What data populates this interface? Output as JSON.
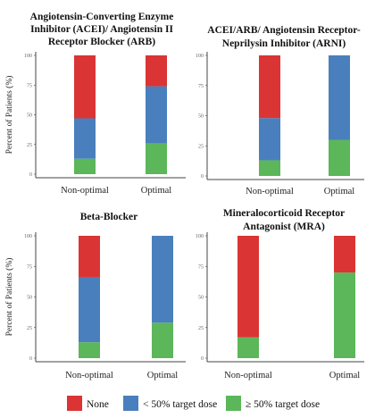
{
  "colors": {
    "none": "#db3434",
    "low": "#4a7fbd",
    "high": "#5cb65a",
    "axis": "#444444"
  },
  "legend": {
    "items": [
      {
        "key": "none",
        "label": "None"
      },
      {
        "key": "low",
        "label": "< 50% target dose"
      },
      {
        "key": "high",
        "label": "≥ 50% target dose"
      }
    ]
  },
  "chart_data": [
    {
      "type": "bar",
      "stacked": true,
      "title_lines": [
        "Angiotensin-Converting Enzyme",
        "Inhibitor (ACEI)/ Angiotensin II",
        "Receptor Blocker (ARB)"
      ],
      "ylabel": "Percent of Patients (%)",
      "xlabel": "",
      "ylim": [
        0,
        100
      ],
      "yticks": [
        0,
        25,
        50,
        75,
        100
      ],
      "categories": [
        "Non-optimal",
        "Optimal"
      ],
      "series": [
        {
          "key": "high",
          "name": "≥ 50% target dose",
          "values": [
            13,
            26
          ]
        },
        {
          "key": "low",
          "name": "< 50% target dose",
          "values": [
            34,
            48
          ]
        },
        {
          "key": "none",
          "name": "None",
          "values": [
            53,
            26
          ]
        }
      ]
    },
    {
      "type": "bar",
      "stacked": true,
      "title_lines": [
        "ACEI/ARB/ Angiotensin Receptor-",
        "Neprilysin Inhibitor (ARNI)"
      ],
      "ylabel": "",
      "xlabel": "",
      "ylim": [
        0,
        100
      ],
      "yticks": [
        0,
        25,
        50,
        75,
        100
      ],
      "categories": [
        "Non-optimal",
        "Optimal"
      ],
      "series": [
        {
          "key": "high",
          "name": "≥ 50% target dose",
          "values": [
            13,
            30
          ]
        },
        {
          "key": "low",
          "name": "< 50% target dose",
          "values": [
            35,
            70
          ]
        },
        {
          "key": "none",
          "name": "None",
          "values": [
            52,
            0
          ]
        }
      ]
    },
    {
      "type": "bar",
      "stacked": true,
      "title_lines": [
        "Beta-Blocker"
      ],
      "ylabel": "Percent of Patients (%)",
      "xlabel": "",
      "ylim": [
        0,
        100
      ],
      "yticks": [
        0,
        25,
        50,
        75,
        100
      ],
      "categories": [
        "Non-optimal",
        "Optimal"
      ],
      "series": [
        {
          "key": "high",
          "name": "≥ 50% target dose",
          "values": [
            13,
            29
          ]
        },
        {
          "key": "low",
          "name": "< 50% target dose",
          "values": [
            53,
            71
          ]
        },
        {
          "key": "none",
          "name": "None",
          "values": [
            34,
            0
          ]
        }
      ]
    },
    {
      "type": "bar",
      "stacked": true,
      "title_lines": [
        "Mineralocorticoid Receptor",
        "Antagonist (MRA)"
      ],
      "ylabel": "",
      "xlabel": "",
      "ylim": [
        0,
        100
      ],
      "yticks": [
        0,
        25,
        50,
        75,
        100
      ],
      "categories": [
        "Non-optimal",
        "Optimal"
      ],
      "series": [
        {
          "key": "high",
          "name": "≥ 50% target dose",
          "values": [
            17,
            70
          ]
        },
        {
          "key": "low",
          "name": "< 50% target dose",
          "values": [
            0,
            0
          ]
        },
        {
          "key": "none",
          "name": "None",
          "values": [
            83,
            30
          ]
        }
      ]
    }
  ]
}
